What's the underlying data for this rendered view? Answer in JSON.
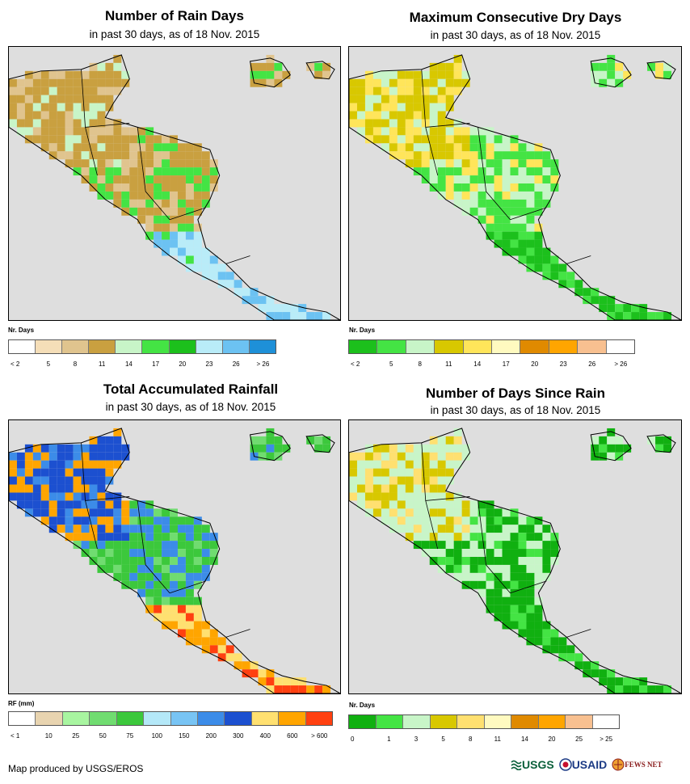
{
  "panels": [
    {
      "title": "Number of Rain Days",
      "subtitle": "in past 30 days, as of 18 Nov. 2015",
      "legend_title": "Nr. Days",
      "legend_colors": [
        "#ffffff",
        "#f5deb8",
        "#e0c48e",
        "#c9a040",
        "#c8f5c8",
        "#44e444",
        "#1cc01c",
        "#b9ecf8",
        "#6cc2f2",
        "#1e90d8"
      ],
      "legend_labels": [
        "< 2",
        "5",
        "8",
        "11",
        "14",
        "17",
        "20",
        "23",
        "26",
        "> 26"
      ]
    },
    {
      "title": "Maximum Consecutive Dry Days",
      "subtitle": "in past 30 days, as of 18 Nov. 2015",
      "legend_title": "Nr. Days",
      "legend_colors": [
        "#1cc01c",
        "#44e444",
        "#c8f5c8",
        "#d8c800",
        "#ffe55a",
        "#fffac0",
        "#e08a00",
        "#ffa500",
        "#f8c090",
        "#ffffff"
      ],
      "legend_labels": [
        "< 2",
        "5",
        "8",
        "11",
        "14",
        "17",
        "20",
        "23",
        "26",
        "> 26"
      ]
    },
    {
      "title": "Total Accumulated Rainfall",
      "subtitle": "in past 30 days, as of 18 Nov. 2015",
      "legend_title": "RF (mm)",
      "legend_colors": [
        "#ffffff",
        "#e8d4b0",
        "#a8f5a0",
        "#70dc70",
        "#3cc83c",
        "#b4e8f8",
        "#78c4f4",
        "#3c8ce8",
        "#1c50d0",
        "#ffe070",
        "#ffa500",
        "#ff4010"
      ],
      "legend_labels": [
        "< 1",
        "10",
        "25",
        "50",
        "75",
        "100",
        "150",
        "200",
        "300",
        "400",
        "600",
        "> 600"
      ]
    },
    {
      "title": "Number of Days Since Rain",
      "subtitle": "in past 30 days, as of 18 Nov. 2015",
      "legend_title": "Nr. Days",
      "legend_colors": [
        "#10b010",
        "#44e444",
        "#c8f5c8",
        "#d8c800",
        "#ffe070",
        "#fffac0",
        "#e08a00",
        "#ffa500",
        "#f8c090",
        "#ffffff"
      ],
      "legend_labels": [
        "0",
        "1",
        "3",
        "5",
        "8",
        "11",
        "14",
        "20",
        "25",
        "> 25"
      ]
    }
  ],
  "credit": "Map produced by USGS/EROS",
  "logos": {
    "usgs": "USGS",
    "usaid": "USAID",
    "fews": "FEWS NET"
  }
}
